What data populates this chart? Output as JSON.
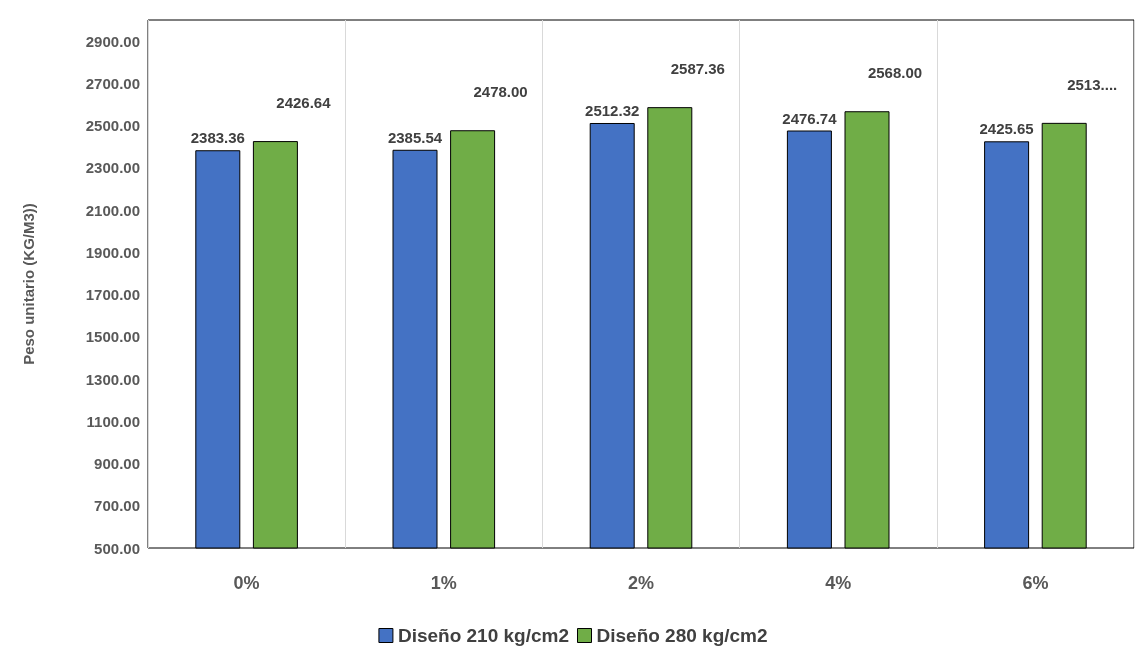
{
  "chart_data": {
    "type": "bar",
    "ylabel": "Peso unitario (KG/M3))",
    "categories": [
      "0%",
      "1%",
      "2%",
      "4%",
      "6%"
    ],
    "series": [
      {
        "name": "Diseño 210 kg/cm2",
        "color": "#4472c4",
        "values": [
          2383.36,
          2385.54,
          2512.32,
          2476.74,
          2425.65
        ],
        "value_labels": [
          "2383.36",
          "2385.54",
          "2512.32",
          "2476.74",
          "2425.65"
        ]
      },
      {
        "name": "Diseño 280 kg/cm2",
        "color": "#70ad47",
        "values": [
          2426.64,
          2478.0,
          2587.36,
          2568.0,
          2513
        ],
        "value_labels": [
          "2426.64",
          "2478.00",
          "2587.36",
          "2568.00",
          "2513...."
        ]
      }
    ],
    "ylim": [
      500,
      3000
    ],
    "yticks": [
      {
        "value": 500,
        "label": "500.00"
      },
      {
        "value": 700,
        "label": "700.00"
      },
      {
        "value": 900,
        "label": "900.00"
      },
      {
        "value": 1100,
        "label": "1100.00"
      },
      {
        "value": 1300,
        "label": "1300.00"
      },
      {
        "value": 1500,
        "label": "1500.00"
      },
      {
        "value": 1700,
        "label": "1700.00"
      },
      {
        "value": 1900,
        "label": "1900.00"
      },
      {
        "value": 2100,
        "label": "2100.00"
      },
      {
        "value": 2300,
        "label": "2300.00"
      },
      {
        "value": 2500,
        "label": "2500.00"
      },
      {
        "value": 2700,
        "label": "2700.00"
      },
      {
        "value": 2900,
        "label": "2900.00"
      }
    ],
    "grid": "x",
    "legend": "bottom"
  }
}
